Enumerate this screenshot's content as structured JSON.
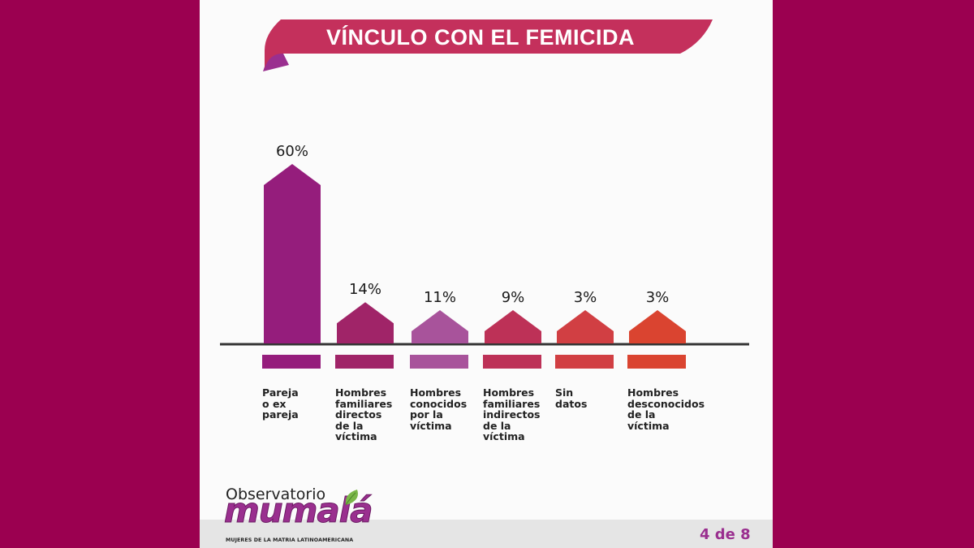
{
  "title": "VÍNCULO CON EL FEMICIDA",
  "chart_data": {
    "type": "bar",
    "title": "VÍNCULO CON EL FEMICIDA",
    "categories": [
      "Pareja o ex pareja",
      "Hombres familiares directos de la víctima",
      "Hombres conocidos por la víctima",
      "Hombres familiares indirectos de la víctima",
      "Sin datos",
      "Hombres desconocidos de la víctima"
    ],
    "category_lines": [
      [
        "Pareja",
        "o ex",
        "pareja"
      ],
      [
        "Hombres",
        "familiares",
        "directos",
        "de la",
        "víctima"
      ],
      [
        "Hombres",
        "conocidos",
        "por la",
        "víctima"
      ],
      [
        "Hombres",
        "familiares",
        "indirectos",
        "de la",
        "víctima"
      ],
      [
        "Sin",
        "datos"
      ],
      [
        "Hombres",
        "desconocidos",
        "de la",
        "víctima"
      ]
    ],
    "values": [
      60,
      14,
      11,
      9,
      3,
      3
    ],
    "value_labels": [
      "60%",
      "14%",
      "11%",
      "9%",
      "3%",
      "3%"
    ],
    "bar_colors": [
      "#951d7c",
      "#a02468",
      "#a8539b",
      "#bd3157",
      "#d13f43",
      "#da4430"
    ],
    "ylim": [
      0,
      60
    ],
    "grid": false,
    "legend": "none"
  },
  "logo": {
    "line1": "Observatorio",
    "word": "mumalá",
    "tagline": "MUJERES DE LA MATRIA LATINOAMERICANA"
  },
  "page_indicator": "4 de 8",
  "colors": {
    "background": "#9b0050",
    "card": "#fbfbfb",
    "banner": "#c4305c",
    "banner_fold": "#9a2f8f",
    "accent_text": "#9a2f8f"
  }
}
